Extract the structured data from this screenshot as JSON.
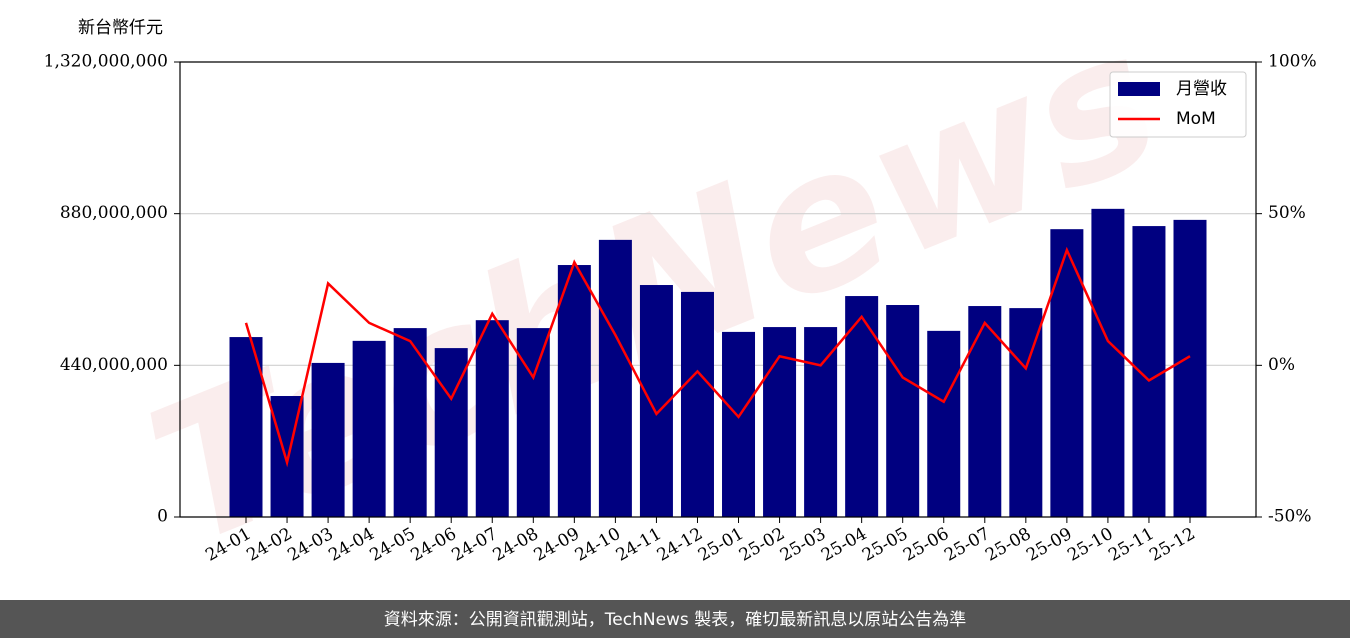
{
  "chart_data": {
    "type": "bar",
    "y_label": "新台幣仟元",
    "watermark": "TechNews",
    "categories": [
      "24-01",
      "24-02",
      "24-03",
      "24-04",
      "24-05",
      "24-06",
      "24-07",
      "24-08",
      "24-09",
      "24-10",
      "24-11",
      "24-12",
      "25-01",
      "25-02",
      "25-03",
      "25-04",
      "25-05",
      "25-06",
      "25-07",
      "25-08",
      "25-09",
      "25-10",
      "25-11",
      "25-12"
    ],
    "series": [
      {
        "name": "月營收",
        "color": "#000080",
        "values": [
          522000000,
          351000000,
          447000000,
          511000000,
          548000000,
          490000000,
          571000000,
          548000000,
          731000000,
          804000000,
          673000000,
          653000000,
          537000000,
          551000000,
          551000000,
          641000000,
          615000000,
          540000000,
          612000000,
          606000000,
          835000000,
          894000000,
          844000000,
          862000000
        ]
      },
      {
        "name": "MoM",
        "color": "#ff0000",
        "type": "line",
        "axis": "y2",
        "values": [
          14,
          -32,
          27,
          14,
          8,
          -11,
          17,
          -4,
          34,
          10,
          -16,
          -2,
          -17,
          3,
          0,
          16,
          -4,
          -12,
          14,
          -1,
          38,
          8,
          -5,
          3
        ]
      }
    ],
    "ylim": [
      0,
      1320000000
    ],
    "yticks": [
      {
        "value": 0,
        "label": "0"
      },
      {
        "value": 440000000,
        "label": "440,000,000"
      },
      {
        "value": 880000000,
        "label": "880,000,000"
      },
      {
        "value": 1320000000,
        "label": "1,320,000,000"
      }
    ],
    "y2lim": [
      -50,
      100
    ],
    "y2ticks": [
      {
        "value": -50,
        "label": "-50%"
      },
      {
        "value": 0,
        "label": "0%"
      },
      {
        "value": 50,
        "label": "50%"
      },
      {
        "value": 100,
        "label": "100%"
      }
    ],
    "grid": true,
    "legend": "upper right"
  },
  "footer": "資料來源：公開資訊觀測站，TechNews 製表，確切最新訊息以原站公告為準"
}
